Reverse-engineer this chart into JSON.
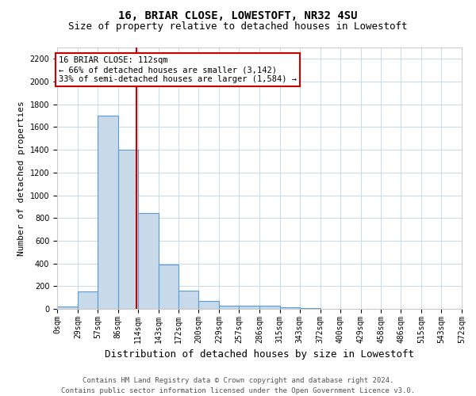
{
  "title": "16, BRIAR CLOSE, LOWESTOFT, NR32 4SU",
  "subtitle": "Size of property relative to detached houses in Lowestoft",
  "xlabel": "Distribution of detached houses by size in Lowestoft",
  "ylabel": "Number of detached properties",
  "bin_edges": [
    0,
    29,
    57,
    86,
    114,
    143,
    172,
    200,
    229,
    257,
    286,
    315,
    343,
    372,
    400,
    429,
    458,
    486,
    515,
    543,
    572
  ],
  "bin_labels": [
    "0sqm",
    "29sqm",
    "57sqm",
    "86sqm",
    "114sqm",
    "143sqm",
    "172sqm",
    "200sqm",
    "229sqm",
    "257sqm",
    "286sqm",
    "315sqm",
    "343sqm",
    "372sqm",
    "400sqm",
    "429sqm",
    "458sqm",
    "486sqm",
    "515sqm",
    "543sqm",
    "572sqm"
  ],
  "bar_heights": [
    20,
    155,
    1700,
    1400,
    840,
    390,
    160,
    70,
    30,
    30,
    25,
    15,
    10,
    0,
    0,
    0,
    0,
    0,
    0,
    0
  ],
  "bar_color": "#c8d9ea",
  "bar_edge_color": "#5b9bd5",
  "property_size": 112,
  "vline_color": "#cc0000",
  "annotation_line1": "16 BRIAR CLOSE: 112sqm",
  "annotation_line2": "← 66% of detached houses are smaller (3,142)",
  "annotation_line3": "33% of semi-detached houses are larger (1,584) →",
  "annotation_box_color": "#ffffff",
  "annotation_box_edge_color": "#cc0000",
  "ylim_max": 2300,
  "yticks": [
    0,
    200,
    400,
    600,
    800,
    1000,
    1200,
    1400,
    1600,
    1800,
    2000,
    2200
  ],
  "footer_line1": "Contains HM Land Registry data © Crown copyright and database right 2024.",
  "footer_line2": "Contains public sector information licensed under the Open Government Licence v3.0.",
  "background_color": "#ffffff",
  "grid_color": "#c8d9ea",
  "title_fontsize": 10,
  "subtitle_fontsize": 9,
  "xlabel_fontsize": 9,
  "ylabel_fontsize": 8,
  "tick_fontsize": 7,
  "annotation_fontsize": 7.5,
  "footer_fontsize": 6.5
}
